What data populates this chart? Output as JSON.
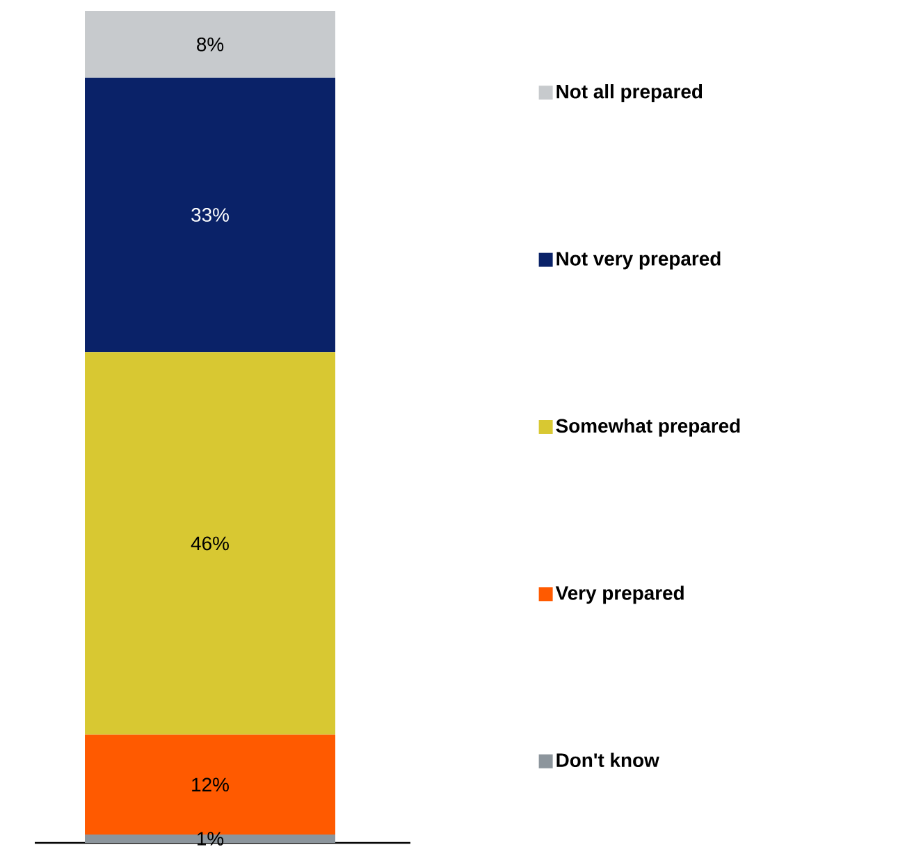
{
  "chart_data": {
    "type": "bar",
    "stacked": true,
    "categories": [
      null
    ],
    "legend": "right",
    "series": [
      {
        "name": "Don't know",
        "color": "#8c959c",
        "values": [
          1
        ],
        "value_labels": [
          "1%"
        ]
      },
      {
        "name": "Very prepared",
        "color": "#ff5a00",
        "values": [
          12
        ],
        "value_labels": [
          "12%"
        ]
      },
      {
        "name": "Somewhat prepared",
        "color": "#d8c832",
        "values": [
          46
        ],
        "value_labels": [
          "46%"
        ]
      },
      {
        "name": "Not very prepared",
        "color": "#0a2268",
        "values": [
          33
        ],
        "value_labels": [
          "33%"
        ]
      },
      {
        "name": "Not all prepared",
        "color": "#c7cacd",
        "values": [
          8
        ],
        "value_labels": [
          "8%"
        ]
      }
    ]
  }
}
